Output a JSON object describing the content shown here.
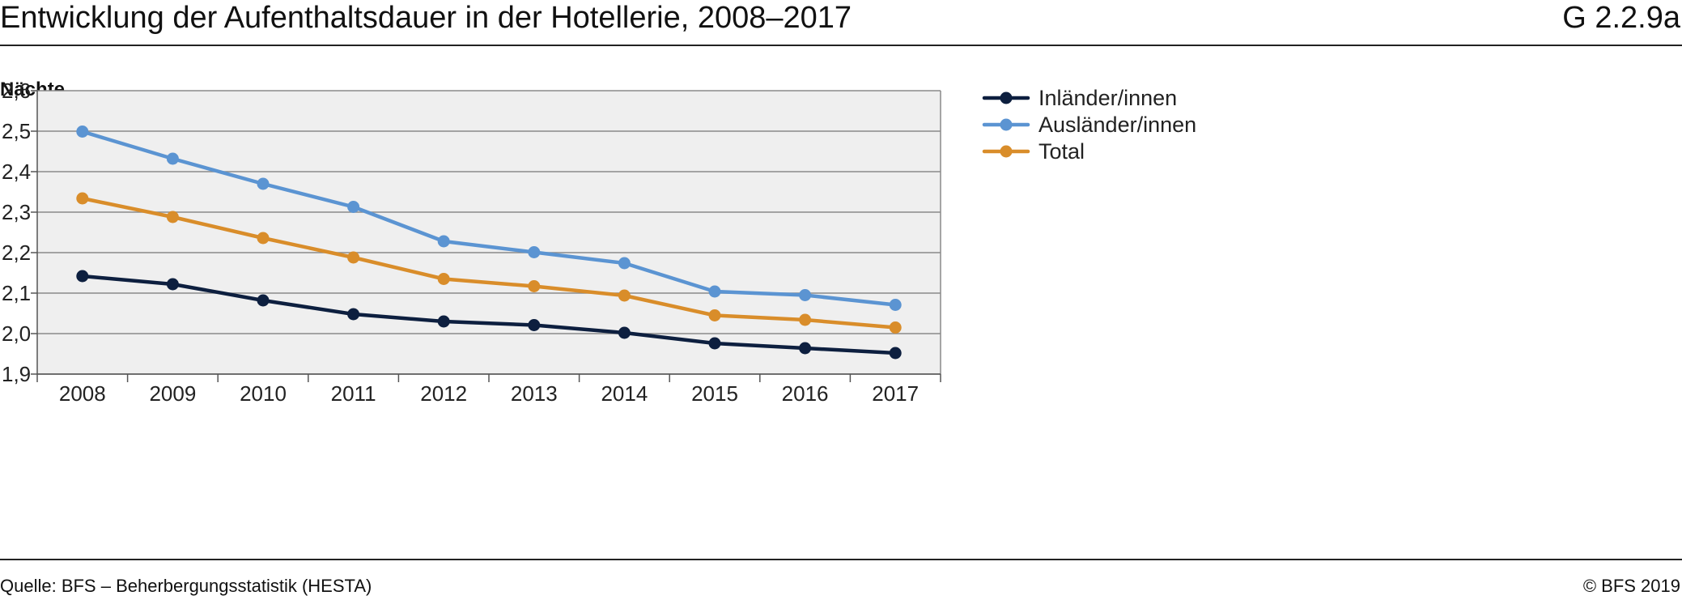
{
  "header": {
    "title": "Entwicklung der Aufenthaltsdauer in der Hotellerie, 2008–2017",
    "chart_id": "G 2.2.9a"
  },
  "footer": {
    "source": "Quelle: BFS – Beherbergungsstatistik (HESTA)",
    "copyright": "© BFS 2019"
  },
  "colors": {
    "inland": "#0d1f3f",
    "ausland": "#5b94d2",
    "total": "#d98d2a",
    "plot_bg": "#efefef",
    "grid": "#8a8a8a"
  },
  "chart_data": {
    "type": "line",
    "ylabel": "Nächte",
    "ylim": [
      1.9,
      2.6
    ],
    "yticks": [
      1.9,
      2.0,
      2.1,
      2.2,
      2.3,
      2.4,
      2.5,
      2.6
    ],
    "ytick_labels": [
      "1,9",
      "2,0",
      "2,1",
      "2,2",
      "2,3",
      "2,4",
      "2,5",
      "2,6"
    ],
    "categories": [
      "2008",
      "2009",
      "2010",
      "2011",
      "2012",
      "2013",
      "2014",
      "2015",
      "2016",
      "2017"
    ],
    "legend_position": "right",
    "grid": true,
    "series": [
      {
        "name": "Inländer/innen",
        "color": "#0d1f3f",
        "values": [
          2.142,
          2.122,
          2.082,
          2.048,
          2.03,
          2.021,
          2.002,
          1.976,
          1.964,
          1.952
        ]
      },
      {
        "name": "Ausländer/innen",
        "color": "#5b94d2",
        "values": [
          2.499,
          2.432,
          2.37,
          2.313,
          2.228,
          2.201,
          2.174,
          2.104,
          2.095,
          2.071
        ]
      },
      {
        "name": "Total",
        "color": "#d98d2a",
        "values": [
          2.334,
          2.288,
          2.236,
          2.188,
          2.135,
          2.117,
          2.094,
          2.045,
          2.034,
          2.015
        ]
      }
    ]
  }
}
